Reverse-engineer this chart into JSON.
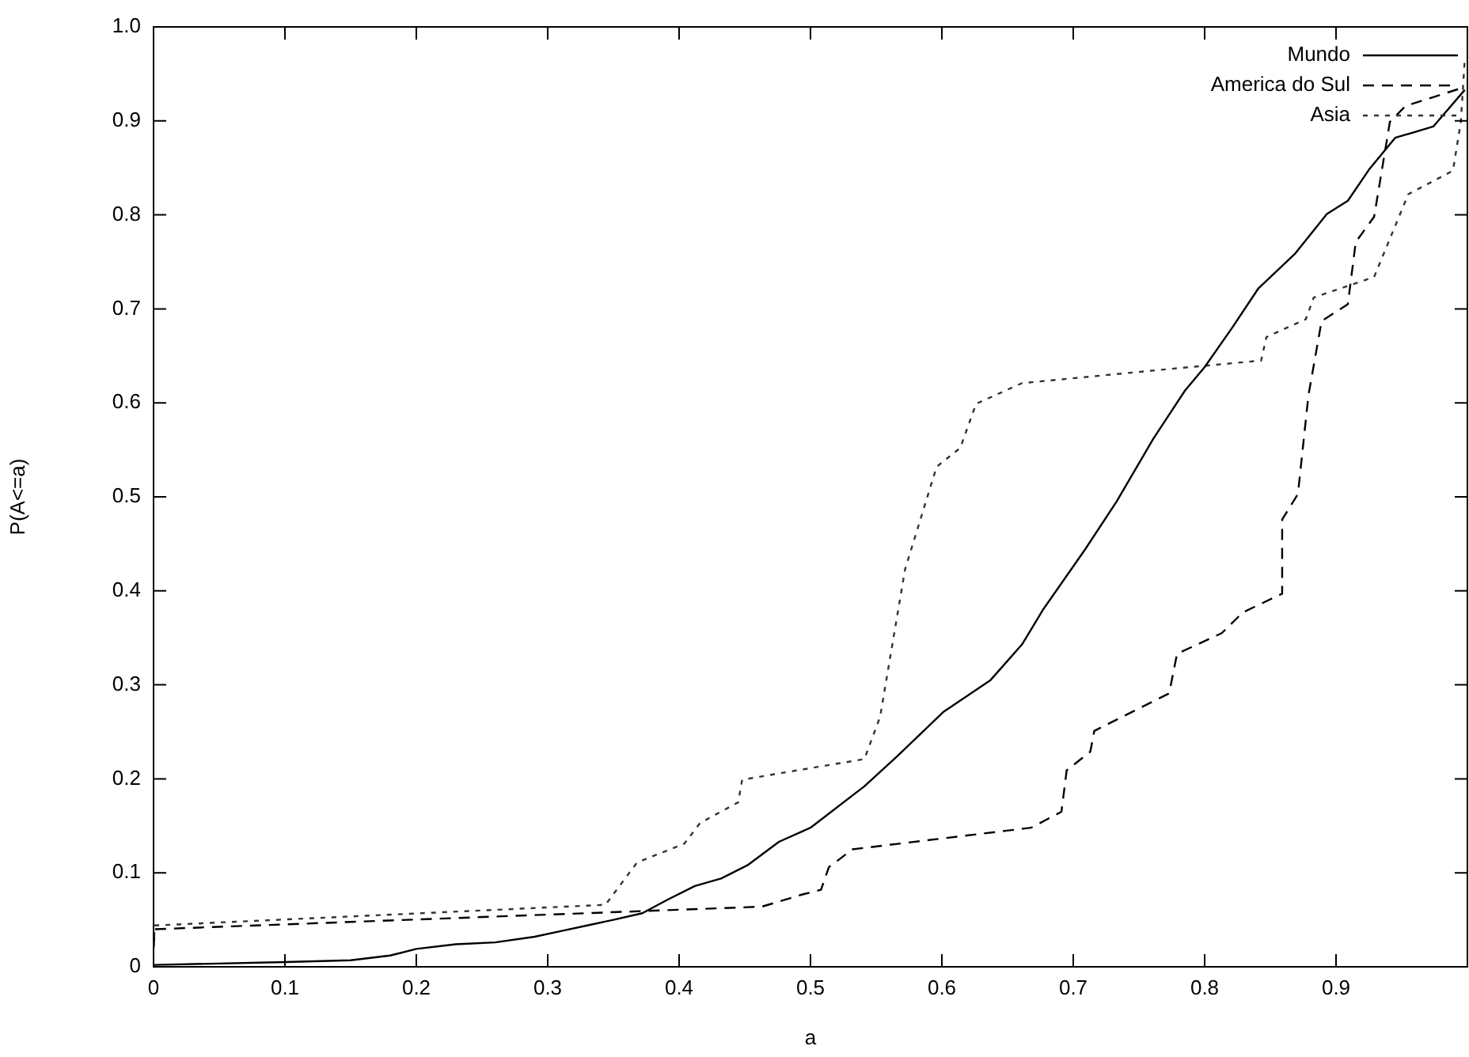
{
  "chart_data": {
    "type": "line",
    "xlabel": "a",
    "ylabel": "P(A<=a)",
    "xlim": [
      0,
      1
    ],
    "ylim": [
      0,
      1
    ],
    "xticks": [
      0,
      0.1,
      0.2,
      0.3,
      0.4,
      0.5,
      0.6,
      0.7,
      0.8,
      0.9
    ],
    "yticks": [
      0,
      0.1,
      0.2,
      0.3,
      0.4,
      0.5,
      0.6,
      0.7,
      0.8,
      0.9,
      {
        "value": 1,
        "label": "1.0"
      }
    ],
    "grid": false,
    "legend": "top right",
    "marker": "none",
    "series": [
      {
        "name": "Mundo",
        "color": "#000000",
        "line_style": "solid",
        "x": [
          0,
          0.1,
          0.15,
          0.18,
          0.2,
          0.23,
          0.26,
          0.29,
          0.31,
          0.33,
          0.35,
          0.372,
          0.392,
          0.412,
          0.432,
          0.452,
          0.476,
          0.5,
          0.541,
          0.566,
          0.601,
          0.637,
          0.661,
          0.677,
          0.709,
          0.733,
          0.761,
          0.785,
          0.8,
          0.821,
          0.841,
          0.869,
          0.893,
          0.909,
          0.925,
          0.945,
          0.974,
          0.998
        ],
        "values": [
          0.002,
          0.005,
          0.007,
          0.012,
          0.019,
          0.024,
          0.026,
          0.032,
          0.038,
          0.044,
          0.05,
          0.057,
          0.072,
          0.086,
          0.094,
          0.108,
          0.133,
          0.148,
          0.192,
          0.224,
          0.271,
          0.305,
          0.343,
          0.38,
          0.444,
          0.495,
          0.562,
          0.613,
          0.638,
          0.68,
          0.722,
          0.759,
          0.801,
          0.815,
          0.848,
          0.882,
          0.894,
          0.933
        ]
      },
      {
        "name": "America do Sul",
        "color": "#000000",
        "line_style": "dashed",
        "x": [
          0,
          0.001,
          0.463,
          0.494,
          0.508,
          0.514,
          0.532,
          0.668,
          0.691,
          0.695,
          0.713,
          0.716,
          0.773,
          0.779,
          0.813,
          0.829,
          0.859,
          0.859,
          0.871,
          0.879,
          0.889,
          0.909,
          0.915,
          0.929,
          0.941,
          0.953,
          0.998
        ],
        "values": [
          0.02,
          0.04,
          0.064,
          0.077,
          0.082,
          0.106,
          0.125,
          0.148,
          0.165,
          0.209,
          0.229,
          0.251,
          0.291,
          0.333,
          0.355,
          0.377,
          0.397,
          0.476,
          0.503,
          0.608,
          0.687,
          0.705,
          0.771,
          0.798,
          0.899,
          0.916,
          0.936
        ]
      },
      {
        "name": "Asia",
        "color": "#333333",
        "line_style": "dotted",
        "x": [
          0,
          0.001,
          0.344,
          0.368,
          0.404,
          0.416,
          0.445,
          0.448,
          0.494,
          0.541,
          0.553,
          0.572,
          0.596,
          0.614,
          0.626,
          0.661,
          0.773,
          0.843,
          0.847,
          0.877,
          0.883,
          0.929,
          0.955,
          0.989,
          0.995,
          0.998
        ],
        "values": [
          0.02,
          0.044,
          0.066,
          0.111,
          0.131,
          0.153,
          0.175,
          0.199,
          0.21,
          0.221,
          0.266,
          0.423,
          0.532,
          0.552,
          0.599,
          0.621,
          0.636,
          0.645,
          0.67,
          0.689,
          0.712,
          0.734,
          0.822,
          0.847,
          0.899,
          0.966
        ]
      }
    ]
  }
}
